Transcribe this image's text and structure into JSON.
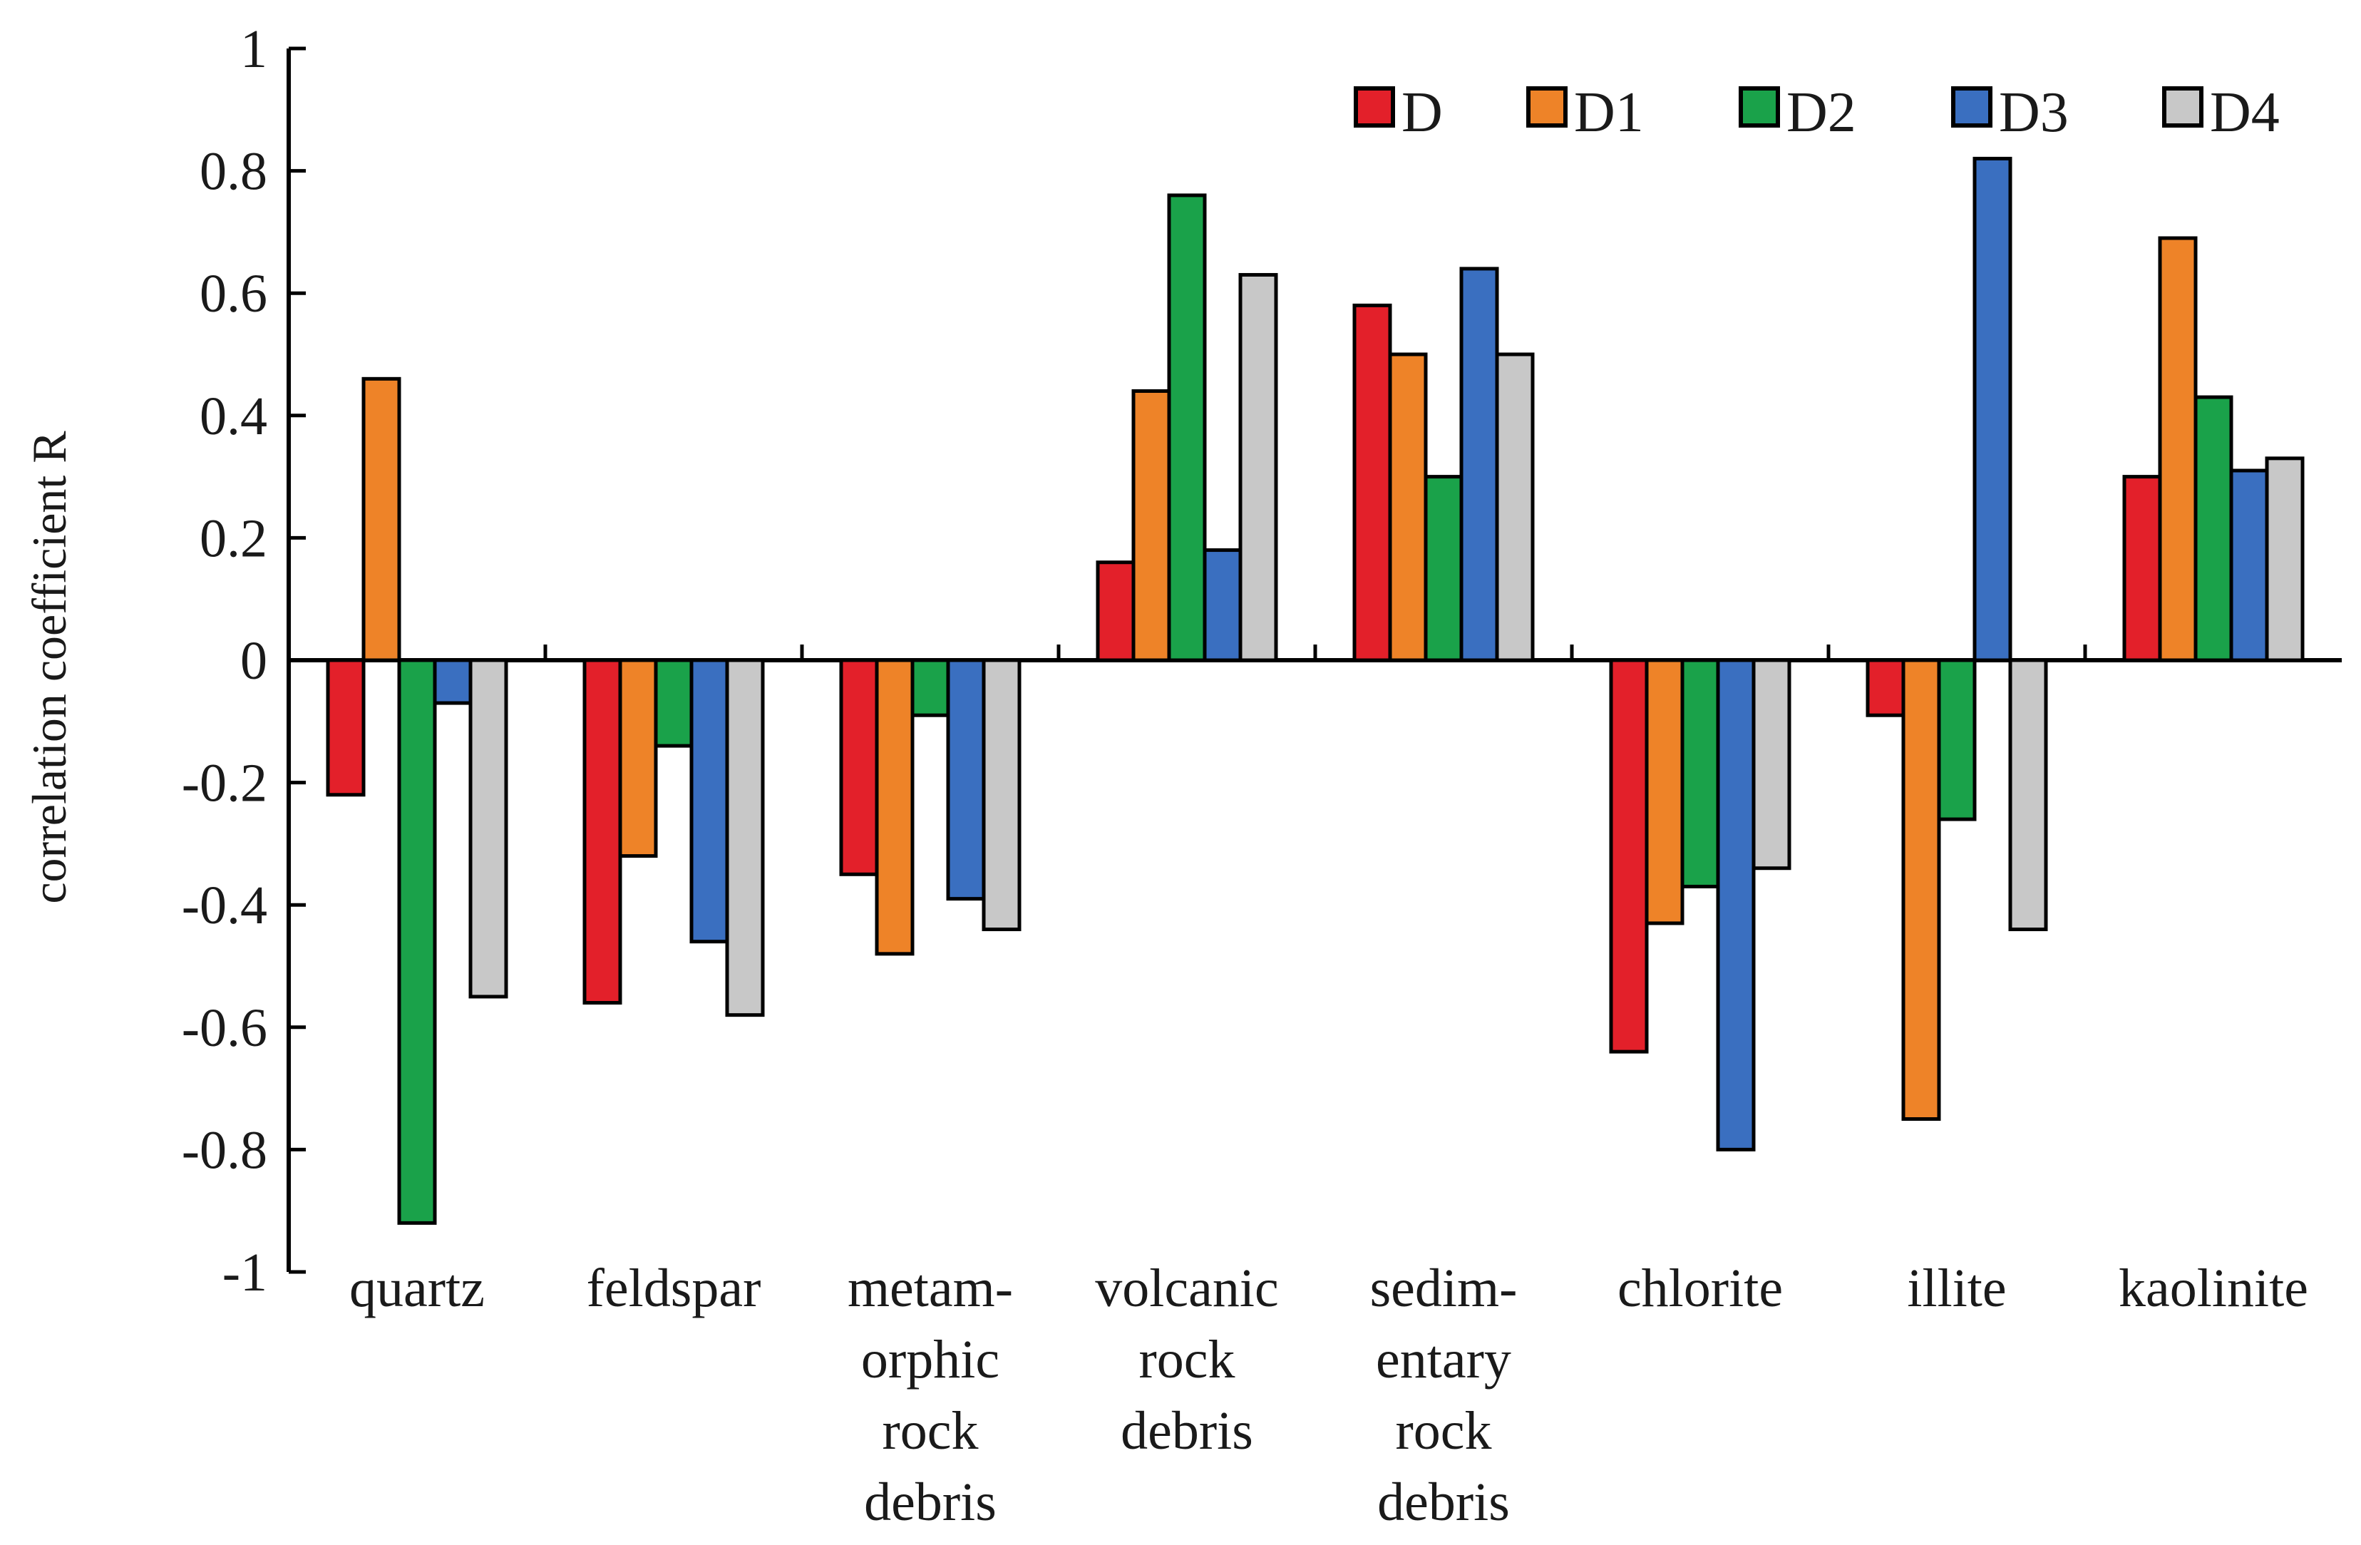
{
  "chart_data": {
    "type": "bar",
    "ylabel": "correlation coefficient R",
    "xlabel": "",
    "ylim": [
      -1,
      1
    ],
    "yticks": [
      "1",
      "0.8",
      "0.6",
      "0.4",
      "0.2",
      "0",
      "-0.2",
      "-0.4",
      "-0.6",
      "-0.8",
      "-1"
    ],
    "legend_position": "top-right",
    "categories": [
      [
        "quartz"
      ],
      [
        "feldspar"
      ],
      [
        "metam-",
        "orphic",
        "rock",
        "debris"
      ],
      [
        "volcanic",
        "rock",
        "debris"
      ],
      [
        "sedim-",
        "entary",
        "rock",
        "debris"
      ],
      [
        "chlorite"
      ],
      [
        "illite"
      ],
      [
        "kaolinite"
      ]
    ],
    "series": [
      {
        "name": "D",
        "color": "#e3202a",
        "values": [
          -0.22,
          -0.56,
          -0.35,
          0.16,
          0.58,
          -0.64,
          -0.09,
          0.3
        ]
      },
      {
        "name": "D1",
        "color": "#ee8328",
        "values": [
          0.46,
          -0.32,
          -0.48,
          0.44,
          0.5,
          -0.43,
          -0.75,
          0.69
        ]
      },
      {
        "name": "D2",
        "color": "#1aa24a",
        "values": [
          -0.92,
          -0.14,
          -0.09,
          0.76,
          0.3,
          -0.37,
          -0.26,
          0.43
        ]
      },
      {
        "name": "D3",
        "color": "#3a6fc0",
        "values": [
          -0.07,
          -0.46,
          -0.39,
          0.18,
          0.64,
          -0.8,
          0.82,
          0.31
        ]
      },
      {
        "name": "D4",
        "color": "#c8c8c8",
        "values": [
          -0.55,
          -0.58,
          -0.44,
          0.63,
          0.5,
          -0.34,
          -0.44,
          0.33
        ]
      }
    ]
  }
}
